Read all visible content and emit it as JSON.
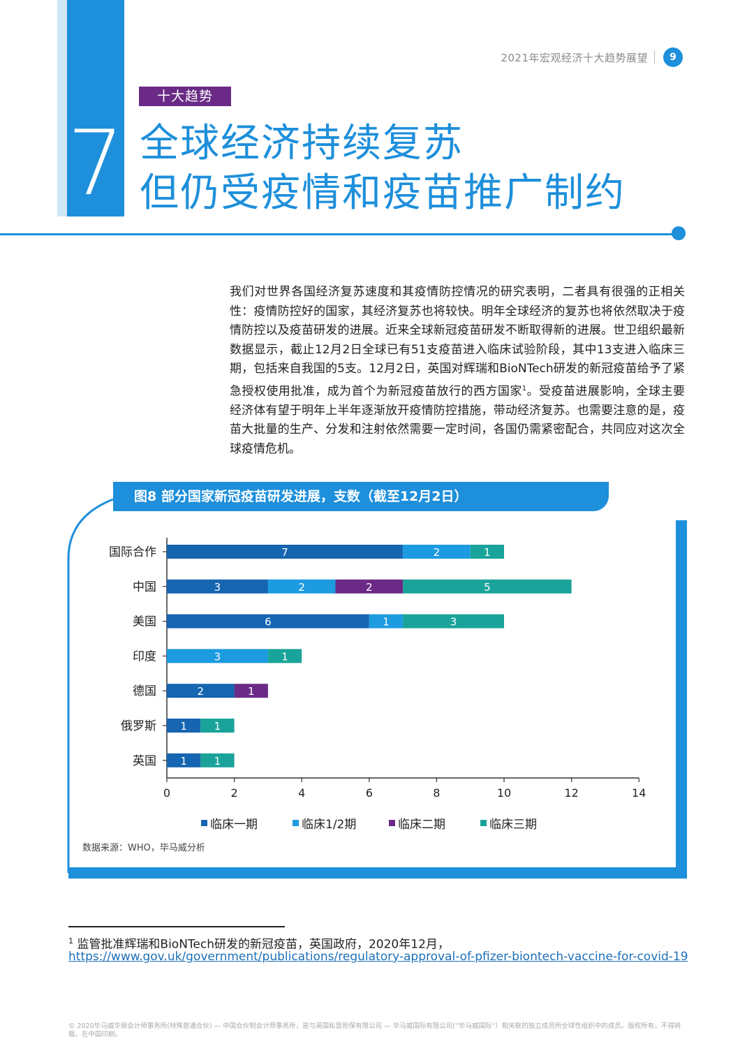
{
  "header": {
    "text": "2021年宏观经济十大趋势展望",
    "page_number": "9"
  },
  "section": {
    "number": "7",
    "tag": "十大趋势",
    "title_line1": "全球经济持续复苏",
    "title_line2": "但仍受疫情和疫苗推广制约"
  },
  "body": {
    "paragraph_main": "我们对世界各国经济复苏速度和其疫情防控情况的研究表明，二者具有很强的正相关性：疫情防控好的国家，其经济复苏也将较快。明年全球经济的复苏也将依然取决于疫情防控以及疫苗研发的进展。近来全球新冠疫苗研发不断取得新的进展。世卫组织最新数据显示，截止12月2日全球已有51支疫苗进入临床试验阶段，其中13支进入临床三期，包括来自我国的5支。12月2日，英国对辉瑞和BioNTech研发的新冠疫苗给予了紧急授权使用批准，成为首个为新冠疫苗放行的西方国家",
    "footnote_ref": "1",
    "paragraph_tail": "。受疫苗进展影响，全球主要经济体有望于明年上半年逐渐放开疫情防控措施，带动经济复苏。也需要注意的是，疫苗大批量的生产、分发和注射依然需要一定时间，各国仍需紧密配合，共同应对这次全球疫情危机。"
  },
  "chart_title": "图8  部分国家新冠疫苗研发进展，支数（截至12月2日）",
  "chart_data": {
    "type": "bar",
    "orientation": "horizontal",
    "stacked": true,
    "title": "图8  部分国家新冠疫苗研发进展，支数（截至12月2日）",
    "categories": [
      "国际合作",
      "中国",
      "美国",
      "印度",
      "德国",
      "俄罗斯",
      "英国"
    ],
    "series": [
      {
        "name": "临床一期",
        "color": "#1565b0",
        "values": [
          7,
          3,
          6,
          0,
          2,
          1,
          1
        ]
      },
      {
        "name": "临床1/2期",
        "color": "#1d9be0",
        "values": [
          2,
          2,
          1,
          3,
          0,
          0,
          0
        ]
      },
      {
        "name": "临床二期",
        "color": "#6a2a86",
        "values": [
          0,
          2,
          0,
          0,
          1,
          0,
          0
        ]
      },
      {
        "name": "临床三期",
        "color": "#1aa39a",
        "values": [
          1,
          5,
          3,
          1,
          0,
          1,
          1
        ]
      }
    ],
    "xlim": [
      0,
      14
    ],
    "xticks": [
      0,
      2,
      4,
      6,
      8,
      10,
      12,
      14
    ],
    "legend_position": "bottom",
    "grid": false
  },
  "source": "数据来源：WHO，毕马威分析",
  "footnote": {
    "number": "1",
    "text": "监管批准辉瑞和BioNTech研发的新冠疫苗，英国政府，2020年12月，",
    "link": "https://www.gov.uk/government/publications/regulatory-approval-of-pfizer-biontech-vaccine-for-covid-19"
  },
  "copyright": "© 2020毕马威华振会计师事务所(特殊普通合伙) — 中国合伙制会计师事务所，是与英国私营担保有限公司 — 毕马威国际有限公司(“毕马威国际”）相关联的独立成员所全球性组织中的成员。版权所有，不得转载。在中国印刷。"
}
